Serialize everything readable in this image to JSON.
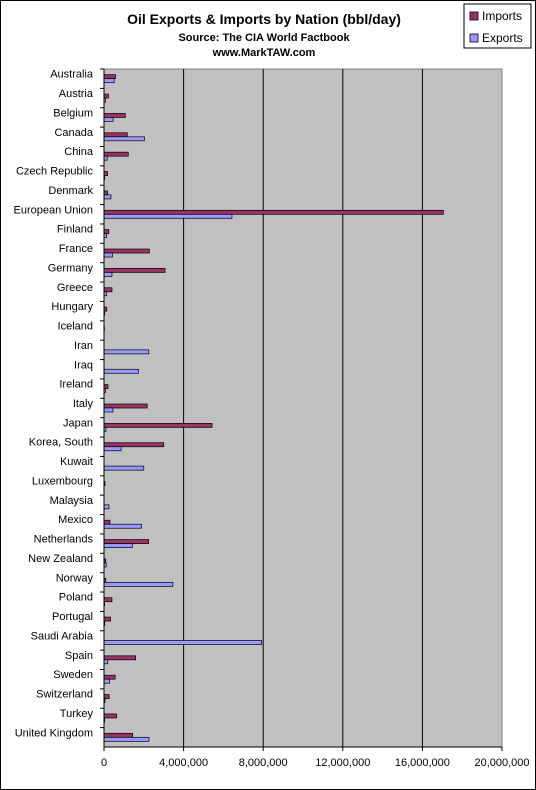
{
  "chart_data": {
    "type": "bar",
    "orientation": "horizontal",
    "title": "Oil Exports & Imports by Nation (bbl/day)",
    "subtitle_lines": [
      "Source: The CIA World Factbook",
      "www.MarkTAW.com"
    ],
    "categories": [
      "Australia",
      "Austria",
      "Belgium",
      "Canada",
      "China",
      "Czech Republic",
      "Denmark",
      "European Union",
      "Finland",
      "France",
      "Germany",
      "Greece",
      "Hungary",
      "Iceland",
      "Iran",
      "Iraq",
      "Ireland",
      "Italy",
      "Japan",
      "Korea, South",
      "Kuwait",
      "Luxembourg",
      "Malaysia",
      "Mexico",
      "Netherlands",
      "New Zealand",
      "Norway",
      "Poland",
      "Portugal",
      "Saudi Arabia",
      "Spain",
      "Sweden",
      "Switzerland",
      "Turkey",
      "United Kingdom"
    ],
    "series": [
      {
        "name": "Imports",
        "color": "#993366",
        "values": [
          580000,
          220000,
          1070000,
          1170000,
          1220000,
          180000,
          180000,
          17050000,
          240000,
          2280000,
          3070000,
          400000,
          140000,
          20000,
          0,
          0,
          200000,
          2170000,
          5430000,
          3000000,
          0,
          50000,
          0,
          300000,
          2240000,
          90000,
          90000,
          400000,
          330000,
          0,
          1590000,
          560000,
          260000,
          630000,
          1440000
        ]
      },
      {
        "name": "Exports",
        "color": "#9999ff",
        "values": [
          510000,
          70000,
          460000,
          2030000,
          160000,
          30000,
          350000,
          6430000,
          130000,
          420000,
          400000,
          130000,
          30000,
          0,
          2250000,
          1730000,
          70000,
          450000,
          100000,
          860000,
          2000000,
          0,
          250000,
          1880000,
          1420000,
          110000,
          3460000,
          30000,
          40000,
          7920000,
          190000,
          280000,
          50000,
          30000,
          2260000
        ]
      }
    ],
    "xlim": [
      0,
      20000000
    ],
    "x_ticks": [
      0,
      4000000,
      8000000,
      12000000,
      16000000,
      20000000
    ],
    "x_tick_labels": [
      "0",
      "4,000,000",
      "8,000,000",
      "12,000,000",
      "16,000,000",
      "20,000,000"
    ],
    "grid": "vertical major lines",
    "plot_background": "#c0c0c0",
    "legend": {
      "placement": "top-right",
      "entries": [
        "Imports",
        "Exports"
      ]
    }
  }
}
